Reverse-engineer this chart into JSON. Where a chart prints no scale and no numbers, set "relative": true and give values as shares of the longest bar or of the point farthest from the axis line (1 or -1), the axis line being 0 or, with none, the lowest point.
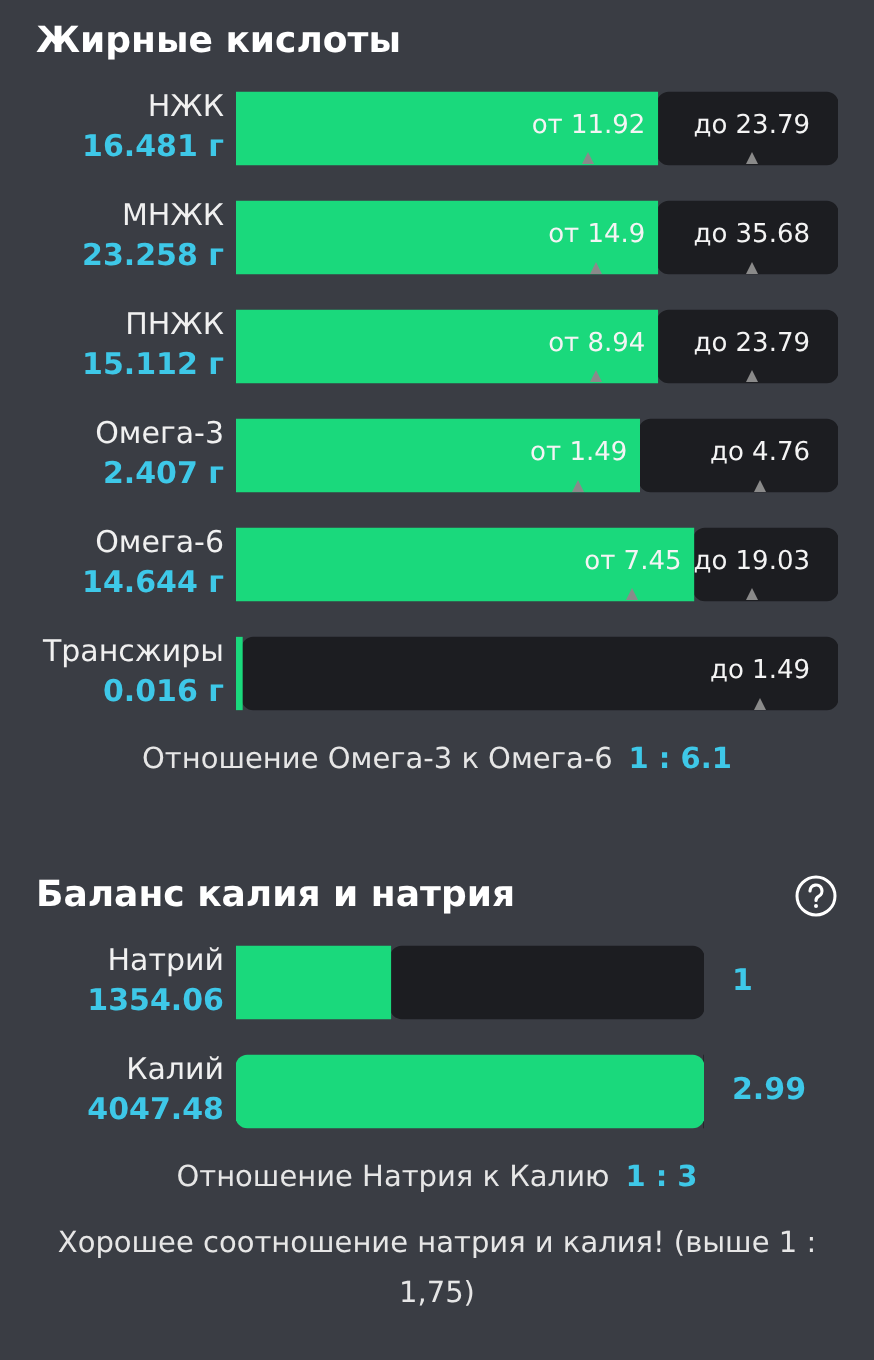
{
  "chart_data": [
    {
      "type": "bar",
      "orientation": "horizontal",
      "stacked": true,
      "relative": true,
      "title": "Жирные кислоты",
      "categories": [
        "НЖК\n16.481 г",
        "МНЖК\n23.258 г",
        "ПНЖК\n15.112 г",
        "Омега-3\n2.407 г",
        "Омега-6\n14.644 г",
        "Трансжиры\n0.016 г"
      ],
      "series": [
        {
          "color": "#1ad97c",
          "values": [
            0.7,
            0.7,
            0.7,
            0.67,
            0.76,
            0.01
          ]
        },
        {
          "color": "#1c1d21",
          "values": [
            0.3,
            0.3,
            0.3,
            0.33,
            0.24,
            0.99
          ]
        }
      ],
      "annotations": [
        {
          "text": "от 11.92",
          "x": 0.7,
          "y": "НЖК\n16.481 г"
        },
        {
          "text": "до 23.79",
          "x": 1.0,
          "y": "НЖК\n16.481 г"
        },
        {
          "text": "от 14.9",
          "x": 0.7,
          "y": "МНЖК\n23.258 г"
        },
        {
          "text": "до 35.68",
          "x": 1.0,
          "y": "МНЖК\n23.258 г"
        },
        {
          "text": "от 8.94",
          "x": 0.7,
          "y": "ПНЖК\n15.112 г"
        },
        {
          "text": "до 23.79",
          "x": 1.0,
          "y": "ПНЖК\n15.112 г"
        },
        {
          "text": "от 1.49",
          "x": 0.67,
          "y": "Омега-3\n2.407 г"
        },
        {
          "text": "до 4.76",
          "x": 1.0,
          "y": "Омега-3\n2.407 г"
        },
        {
          "text": "от 7.45",
          "x": 0.76,
          "y": "Омега-6\n14.644 г"
        },
        {
          "text": "до 19.03",
          "x": 1.0,
          "y": "Омега-6\n14.644 г"
        },
        {
          "text": "до 1.49",
          "x": 1.0,
          "y": "Трансжиры\n0.016 г"
        },
        "Отношение Омега-3 к Омега-6",
        "1 : 6.1"
      ]
    },
    {
      "type": "bar",
      "orientation": "horizontal",
      "stacked": true,
      "relative": true,
      "title": "Баланс калия и натрия",
      "categories": [
        "Натрий\n1354.06",
        "Калий\n4047.48"
      ],
      "series": [
        {
          "color": "#1ad97c",
          "values": [
            0.33,
            1.0
          ]
        },
        {
          "color": "#1c1d21",
          "values": [
            0.67,
            0
          ]
        }
      ],
      "annotations": [
        {
          "text": "1",
          "x": 1.0,
          "y": "Натрий\n1354.06"
        },
        {
          "text": "2.99",
          "x": 1.0,
          "y": "Калий\n4047.48"
        },
        "Отношение Натрия к Калию",
        "1 : 3",
        "Хорошее соотношение натрия и калия! (выше 1 : 1,75)"
      ]
    }
  ]
}
